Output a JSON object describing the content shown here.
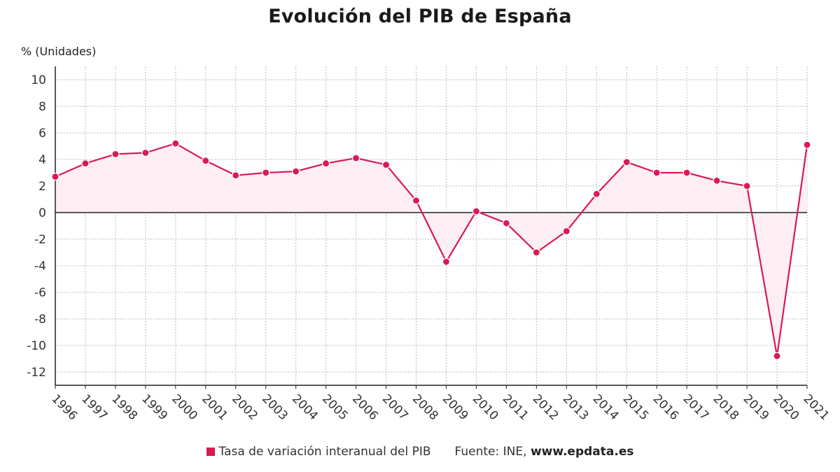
{
  "chart_data": {
    "type": "line",
    "title": "Evolución del PIB de España",
    "ylabel": "% (Unidades)",
    "categories": [
      "1996",
      "1997",
      "1998",
      "1999",
      "2000",
      "2001",
      "2002",
      "2003",
      "2004",
      "2005",
      "2006",
      "2007",
      "2008",
      "2009",
      "2010",
      "2011",
      "2012",
      "2013",
      "2014",
      "2015",
      "2016",
      "2017",
      "2018",
      "2019",
      "2020",
      "2021"
    ],
    "series": [
      {
        "name": "Tasa de variación interanual del PIB",
        "values": [
          2.7,
          3.7,
          4.4,
          4.5,
          5.2,
          3.9,
          2.8,
          3.0,
          3.1,
          3.7,
          4.1,
          3.6,
          0.9,
          -3.7,
          0.1,
          -0.8,
          -3.0,
          -1.4,
          1.4,
          3.8,
          3.0,
          3.0,
          2.4,
          2.0,
          -10.8,
          5.1
        ]
      }
    ],
    "ylim": [
      -13,
      11
    ],
    "yticks": [
      "10",
      "8",
      "6",
      "4",
      "2",
      "0",
      "-2",
      "-4",
      "-6",
      "-8",
      "-10",
      "-12"
    ],
    "grid": true,
    "legend_position": "bottom-center",
    "colors": {
      "series": "#d81b55",
      "fill": "#fdeef3",
      "zero_line": "#222222",
      "grid": "#bbbbbb"
    }
  },
  "source": {
    "label": "Fuente: INE,",
    "site": "www.epdata.es"
  }
}
